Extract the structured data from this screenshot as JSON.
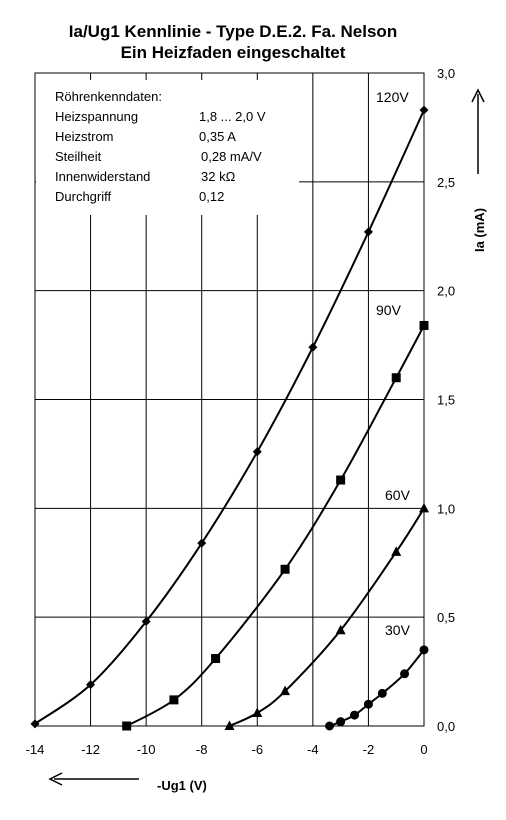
{
  "chart_data": {
    "type": "line",
    "title": "Ia/Ug1 Kennlinie - Type D.E.2.  Fa. Nelson",
    "subtitle": "Ein Heizfaden eingeschaltet",
    "xlabel": "-Ug1 (V)",
    "ylabel": "Ia (mA)",
    "xlim": [
      -14,
      0
    ],
    "ylim": [
      0.0,
      3.0
    ],
    "xticks": [
      "-14",
      "-12",
      "-10",
      "-8",
      "-6",
      "-4",
      "-2",
      "0"
    ],
    "yticks": [
      "0,0",
      "0,5",
      "1,0",
      "1,5",
      "2,0",
      "2,5",
      "3,0"
    ],
    "grid": true,
    "series": [
      {
        "name": "120V",
        "marker": "diamond",
        "x": [
          -14,
          -12,
          -10,
          -8,
          -6,
          -4,
          -2,
          0
        ],
        "y": [
          0.01,
          0.19,
          0.48,
          0.84,
          1.26,
          1.74,
          2.27,
          2.83
        ]
      },
      {
        "name": "90V",
        "marker": "square",
        "x": [
          -10.7,
          -9,
          -7.5,
          -5,
          -3,
          -1,
          0
        ],
        "y": [
          0.0,
          0.12,
          0.31,
          0.72,
          1.13,
          1.6,
          1.84
        ]
      },
      {
        "name": "60V",
        "marker": "triangle",
        "x": [
          -7,
          -6,
          -5,
          -3,
          -1,
          0
        ],
        "y": [
          0.0,
          0.06,
          0.16,
          0.44,
          0.8,
          1.0
        ]
      },
      {
        "name": "30V",
        "marker": "circle",
        "x": [
          -3.4,
          -3,
          -2.5,
          -2,
          -1.5,
          -0.7,
          0
        ],
        "y": [
          0.0,
          0.02,
          0.05,
          0.1,
          0.15,
          0.24,
          0.35
        ]
      }
    ],
    "annotation": {
      "heading": "Röhrenkenndaten:",
      "rows": [
        {
          "label": "Heizspannung",
          "value": "1,8 ... 2,0 V"
        },
        {
          "label": "Heizstrom",
          "value": "0,35 A"
        },
        {
          "label": "Steilheit",
          "value": "0,28 mA/V"
        },
        {
          "label": "Innenwiderstand",
          "value": "32 kΩ"
        },
        {
          "label": "Durchgriff",
          "value": "0,12"
        }
      ]
    }
  }
}
